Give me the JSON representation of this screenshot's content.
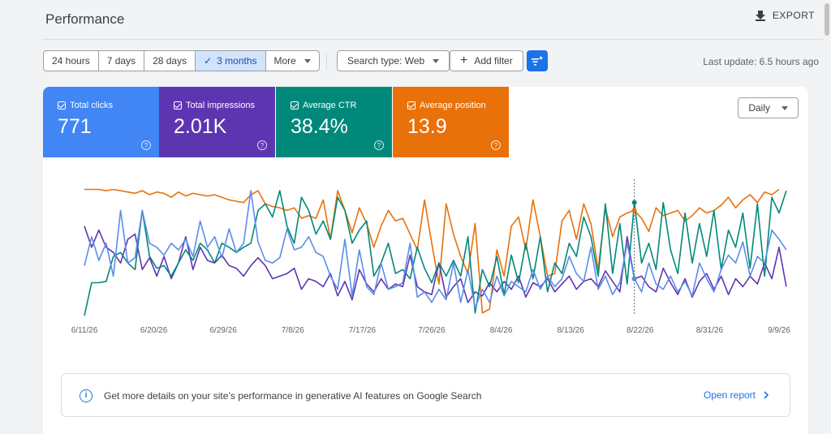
{
  "header": {
    "title": "Performance",
    "export_label": "EXPORT"
  },
  "toolbar": {
    "date_ranges": [
      {
        "label": "24 hours",
        "active": false
      },
      {
        "label": "7 days",
        "active": false
      },
      {
        "label": "28 days",
        "active": false
      },
      {
        "label": "3 months",
        "active": true
      }
    ],
    "more_label": "More",
    "search_type_label": "Search type: Web",
    "add_filter_label": "Add filter",
    "last_update": "Last update: 6.5 hours ago"
  },
  "metrics": [
    {
      "label": "Total clicks",
      "value": "771",
      "color": "#4285f4"
    },
    {
      "label": "Total impressions",
      "value": "2.01K",
      "color": "#5e35b1"
    },
    {
      "label": "Average CTR",
      "value": "38.4%",
      "color": "#00897b"
    },
    {
      "label": "Average position",
      "value": "13.9",
      "color": "#e8710a"
    }
  ],
  "granularity_label": "Daily",
  "chart_data": {
    "type": "line",
    "x_ticks": [
      "6/11/26",
      "6/20/26",
      "6/29/26",
      "7/8/26",
      "7/17/26",
      "7/26/26",
      "8/4/26",
      "8/13/26",
      "8/22/26",
      "8/31/26",
      "9/9/26"
    ],
    "note_y_normalized": "Series plotted on independent axes (normalized 0=bottom,1=top of plot)",
    "hover_date_index": 76,
    "series": [
      {
        "name": "Average position",
        "color": "#e8710a",
        "values": [
          0.96,
          0.96,
          0.96,
          0.95,
          0.96,
          0.95,
          0.94,
          0.93,
          0.95,
          0.92,
          0.94,
          0.93,
          0.9,
          0.94,
          0.91,
          0.93,
          0.92,
          0.91,
          0.92,
          0.9,
          0.88,
          0.87,
          0.86,
          0.92,
          0.95,
          0.85,
          0.83,
          0.82,
          0.8,
          0.82,
          0.74,
          0.76,
          0.74,
          0.88,
          0.58,
          0.95,
          0.8,
          0.63,
          0.82,
          0.7,
          0.52,
          0.68,
          0.8,
          0.72,
          0.74,
          0.62,
          0.5,
          0.88,
          0.55,
          0.24,
          0.85,
          0.62,
          0.45,
          0.32,
          0.7,
          0.02,
          0.05,
          0.5,
          0.3,
          0.68,
          0.75,
          0.5,
          0.88,
          0.6,
          0.3,
          0.32,
          0.72,
          0.8,
          0.58,
          0.85,
          0.7,
          0.35,
          0.82,
          0.6,
          0.75,
          0.78,
          0.8,
          0.74,
          0.64,
          0.82,
          0.76,
          0.78,
          0.8,
          0.72,
          0.76,
          0.82,
          0.78,
          0.8,
          0.84,
          0.9,
          0.82,
          0.88,
          0.92,
          0.86,
          0.94,
          0.92,
          0.96
        ]
      },
      {
        "name": "Total impressions",
        "color": "#5e35b1",
        "values": [
          0.68,
          0.52,
          0.65,
          0.52,
          0.48,
          0.4,
          0.58,
          0.62,
          0.35,
          0.44,
          0.3,
          0.45,
          0.28,
          0.4,
          0.6,
          0.35,
          0.52,
          0.42,
          0.4,
          0.46,
          0.38,
          0.36,
          0.3,
          0.38,
          0.44,
          0.38,
          0.28,
          0.3,
          0.32,
          0.36,
          0.2,
          0.28,
          0.26,
          0.22,
          0.32,
          0.15,
          0.26,
          0.12,
          0.35,
          0.24,
          0.18,
          0.28,
          0.2,
          0.24,
          0.22,
          0.46,
          0.22,
          0.18,
          0.16,
          0.4,
          0.14,
          0.22,
          0.28,
          0.1,
          0.18,
          0.15,
          0.25,
          0.18,
          0.26,
          0.2,
          0.3,
          0.14,
          0.25,
          0.22,
          0.28,
          0.18,
          0.24,
          0.3,
          0.2,
          0.26,
          0.28,
          0.22,
          0.34,
          0.26,
          0.18,
          0.6,
          0.28,
          0.3,
          0.22,
          0.18,
          0.36,
          0.25,
          0.16,
          0.28,
          0.14,
          0.26,
          0.32,
          0.2,
          0.3,
          0.16,
          0.28,
          0.22,
          0.3,
          0.24,
          0.4,
          0.28,
          0.52,
          0.22
        ]
      },
      {
        "name": "Average CTR",
        "color": "#00897b",
        "values": [
          0.0,
          0.25,
          0.25,
          0.26,
          0.45,
          0.48,
          0.4,
          0.35,
          0.8,
          0.45,
          0.36,
          0.38,
          0.3,
          0.4,
          0.5,
          0.42,
          0.55,
          0.5,
          0.4,
          0.55,
          0.52,
          0.48,
          0.52,
          0.55,
          0.8,
          0.85,
          0.75,
          0.95,
          0.68,
          0.55,
          0.9,
          0.8,
          0.62,
          0.72,
          0.58,
          0.9,
          0.8,
          0.55,
          0.65,
          0.72,
          0.3,
          0.4,
          0.55,
          0.32,
          0.35,
          0.28,
          0.52,
          0.36,
          0.25,
          0.4,
          0.3,
          0.42,
          0.3,
          0.6,
          0.02,
          0.35,
          0.22,
          0.45,
          0.16,
          0.46,
          0.25,
          0.55,
          0.28,
          0.6,
          0.18,
          0.4,
          0.32,
          0.55,
          0.45,
          0.75,
          0.6,
          0.3,
          0.85,
          0.32,
          0.7,
          0.24,
          0.86,
          0.4,
          0.55,
          0.35,
          0.86,
          0.5,
          0.32,
          0.78,
          0.4,
          0.7,
          0.45,
          0.8,
          0.35,
          0.65,
          0.52,
          0.78,
          0.36,
          0.85,
          0.3,
          0.9,
          0.78,
          0.95
        ]
      },
      {
        "name": "Total clicks",
        "color": "#5c8de8",
        "values": [
          0.38,
          0.6,
          0.42,
          0.55,
          0.3,
          0.8,
          0.4,
          0.44,
          0.8,
          0.55,
          0.52,
          0.46,
          0.55,
          0.5,
          0.58,
          0.45,
          0.72,
          0.52,
          0.6,
          0.44,
          0.66,
          0.48,
          0.55,
          0.95,
          0.56,
          0.42,
          0.4,
          0.44,
          0.66,
          0.5,
          0.52,
          0.6,
          0.48,
          0.45,
          0.3,
          0.2,
          0.58,
          0.15,
          0.5,
          0.22,
          0.16,
          0.4,
          0.2,
          0.22,
          0.25,
          0.55,
          0.14,
          0.18,
          0.1,
          0.2,
          0.12,
          0.4,
          0.1,
          0.35,
          0.06,
          0.2,
          0.1,
          0.3,
          0.15,
          0.26,
          0.22,
          0.18,
          0.35,
          0.2,
          0.3,
          0.22,
          0.28,
          0.45,
          0.32,
          0.26,
          0.52,
          0.2,
          0.3,
          0.16,
          0.25,
          0.55,
          0.28,
          0.18,
          0.4,
          0.24,
          0.2,
          0.3,
          0.18,
          0.26,
          0.15,
          0.4,
          0.28,
          0.18,
          0.35,
          0.46,
          0.4,
          0.56,
          0.3,
          0.45,
          0.4,
          0.65,
          0.58,
          0.5
        ]
      }
    ]
  },
  "info_banner": {
    "text": "Get more details on your site’s performance in generative AI features on Google Search",
    "link_label": "Open report"
  }
}
